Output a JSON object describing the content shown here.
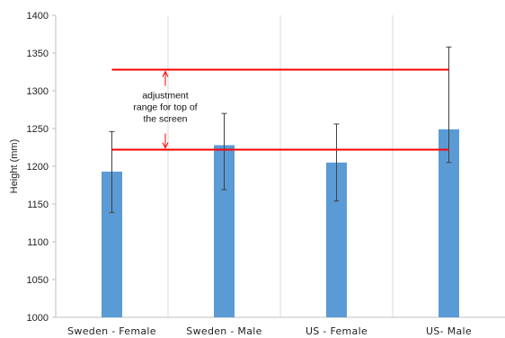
{
  "chart_data": {
    "type": "bar",
    "title": "",
    "xlabel": "",
    "ylabel": "Height (mm)",
    "ylim": [
      1000,
      1400
    ],
    "yticks": [
      1000,
      1050,
      1100,
      1150,
      1200,
      1250,
      1300,
      1350,
      1400
    ],
    "categories": [
      "Sweden - Female",
      "Sweden - Male",
      "US - Female",
      "US- Male"
    ],
    "values": [
      1193,
      1228,
      1205,
      1249
    ],
    "error_low": [
      1139,
      1169,
      1154,
      1205
    ],
    "error_high": [
      1246,
      1270,
      1256,
      1358
    ],
    "bar_color": "#5b9bd5",
    "reference_lines": [
      {
        "y": 1328,
        "x_from_category": 0,
        "x_to_category": 3,
        "color": "#ff0000"
      },
      {
        "y": 1222,
        "x_from_category": 0,
        "x_to_category": 3,
        "color": "#ff0000"
      }
    ],
    "annotation": {
      "lines": [
        "adjustment",
        "range for top of",
        "the screen"
      ],
      "arrow_color": "#ff0000"
    },
    "grid": "vertical category separators",
    "legend": "none"
  }
}
